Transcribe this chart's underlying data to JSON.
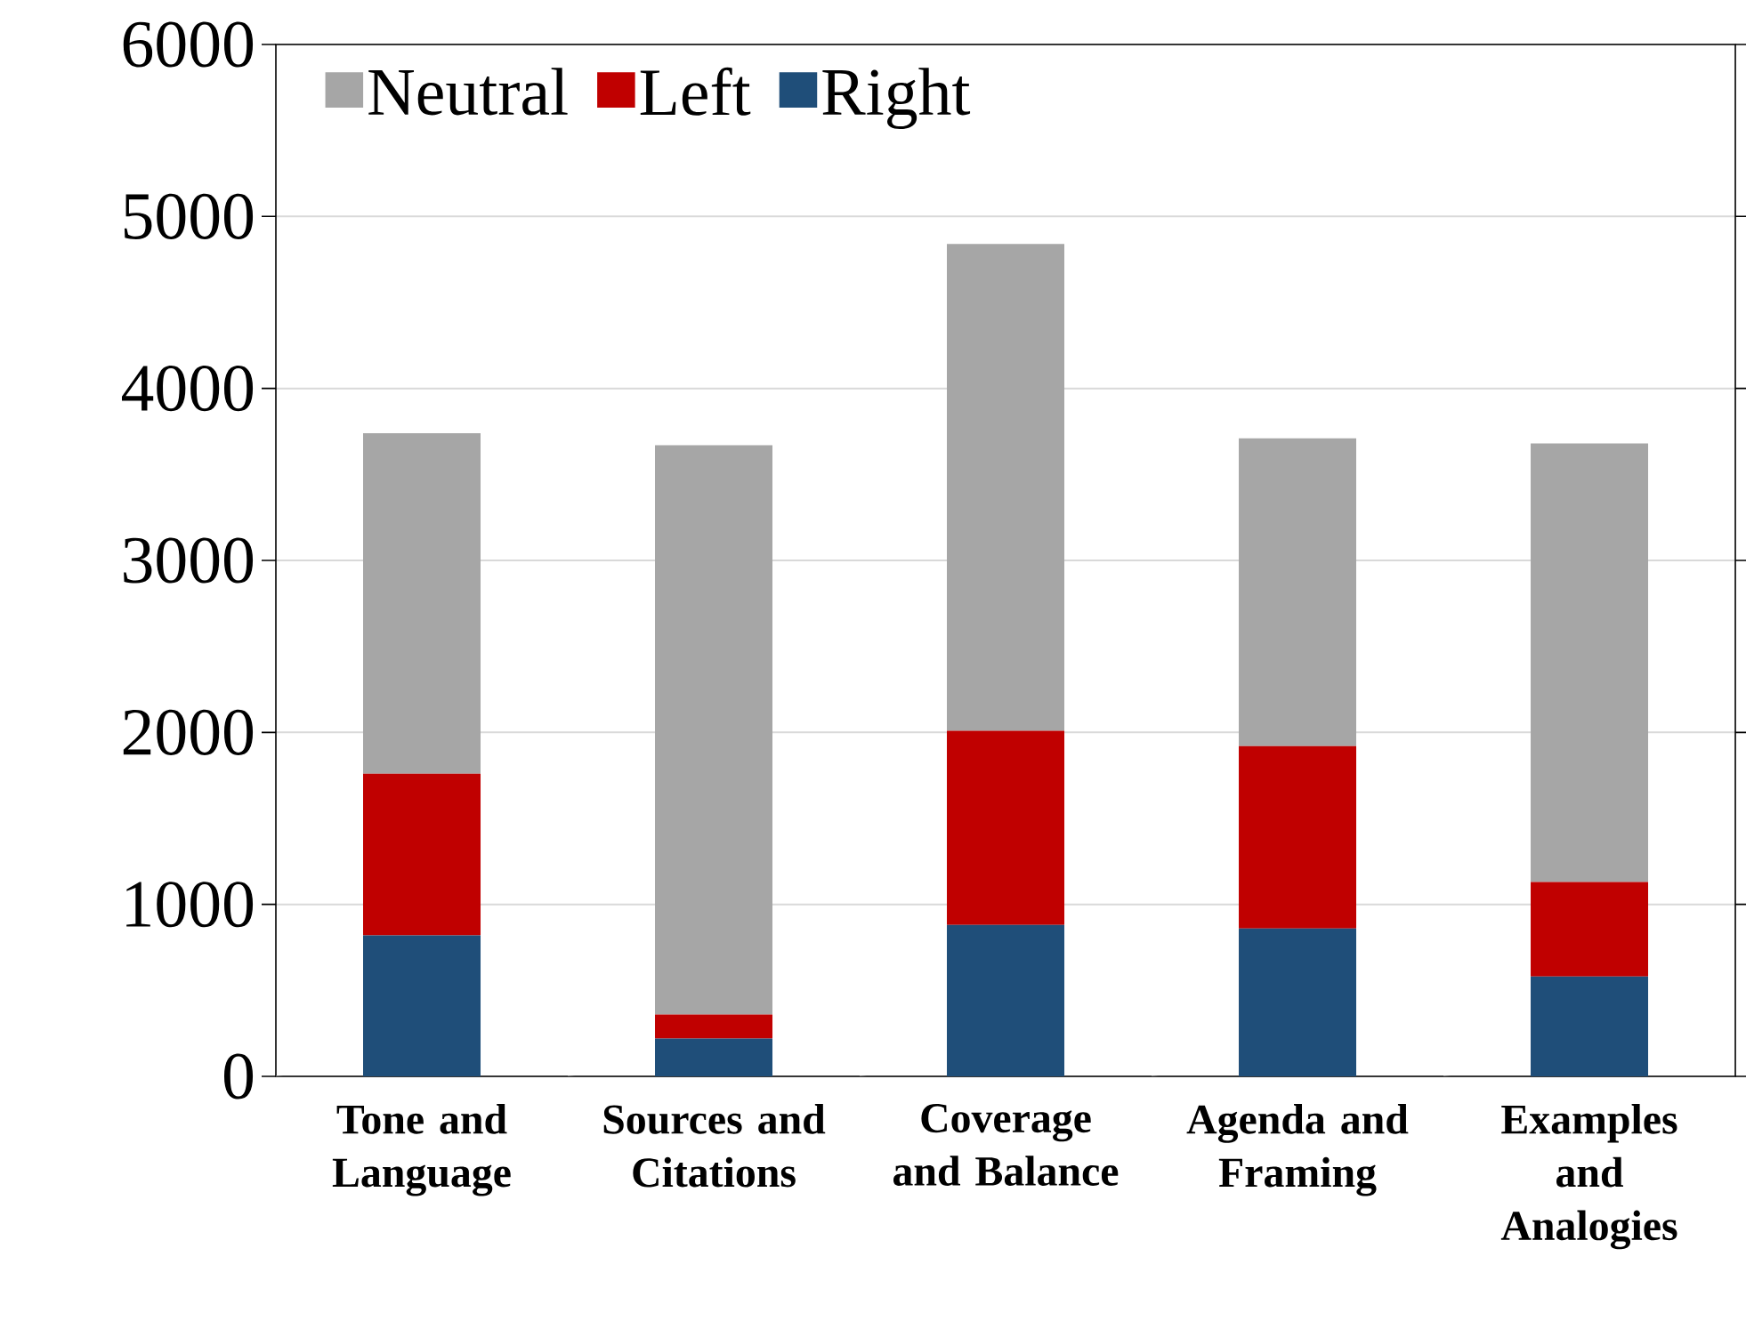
{
  "chart_data": {
    "type": "bar",
    "stacked": true,
    "categories": [
      "Tone and Language",
      "Sources and Citations",
      "Coverage and Balance",
      "Agenda and Framing",
      "Examples and Analogies"
    ],
    "series": [
      {
        "name": "Right",
        "color": "#1f4e79",
        "values": [
          820,
          220,
          880,
          860,
          580
        ]
      },
      {
        "name": "Left",
        "color": "#c00000",
        "values": [
          940,
          140,
          1130,
          1060,
          550
        ]
      },
      {
        "name": "Neutral",
        "color": "#a6a6a6",
        "values": [
          1980,
          3310,
          2830,
          1790,
          2550
        ]
      }
    ],
    "ylim": [
      0,
      6000
    ],
    "yticks": [
      0,
      1000,
      2000,
      3000,
      4000,
      5000,
      6000
    ],
    "grid": "y",
    "legend": "top left"
  }
}
